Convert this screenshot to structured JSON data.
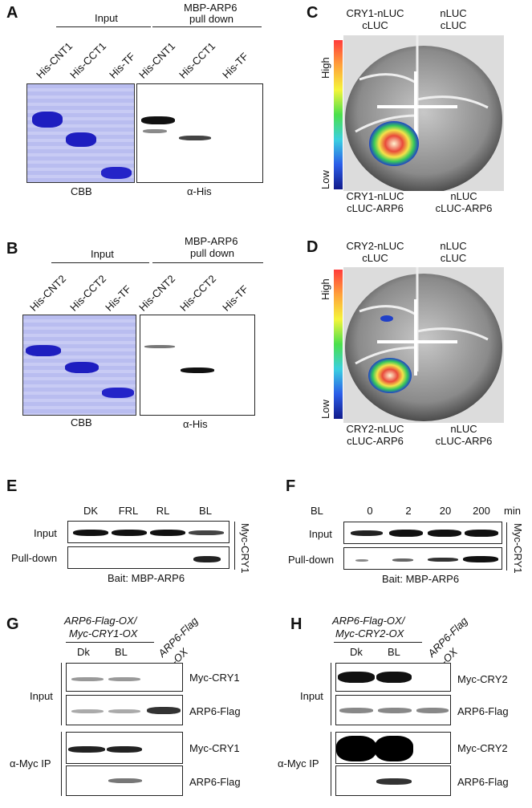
{
  "panels": {
    "A": {
      "label": "A",
      "input": "Input",
      "pulldown_l1": "MBP-ARP6",
      "pulldown_l2": "pull down",
      "lanes": [
        "His-CNT1",
        "His-CCT1",
        "His-TF"
      ],
      "lanes_pd": [
        "His-CNT1",
        "His-CCT1",
        "His-TF"
      ],
      "cbb": "CBB",
      "ahis": "α-His"
    },
    "B": {
      "label": "B",
      "input": "Input",
      "pulldown_l1": "MBP-ARP6",
      "pulldown_l2": "pull down",
      "lanes": [
        "His-CNT2",
        "His-CCT2",
        "His-TF"
      ],
      "lanes_pd": [
        "His-CNT2",
        "His-CCT2",
        "His-TF"
      ],
      "cbb": "CBB",
      "ahis": "α-His"
    },
    "C": {
      "label": "C",
      "tl1": "CRY1-nLUC",
      "tl2": "cLUC",
      "tr1": "nLUC",
      "tr2": "cLUC",
      "bl1": "CRY1-nLUC",
      "bl2": "cLUC-ARP6",
      "br1": "nLUC",
      "br2": "cLUC-ARP6",
      "high": "High",
      "low": "Low"
    },
    "D": {
      "label": "D",
      "tl1": "CRY2-nLUC",
      "tl2": "cLUC",
      "tr1": "nLUC",
      "tr2": "cLUC",
      "bl1": "CRY2-nLUC",
      "bl2": "cLUC-ARP6",
      "br1": "nLUC",
      "br2": "cLUC-ARP6",
      "high": "High",
      "low": "Low"
    },
    "E": {
      "label": "E",
      "conds": [
        "DK",
        "FRL",
        "RL",
        "BL"
      ],
      "input": "Input",
      "pulldown": "Pull-down",
      "side": "Myc-CRY1",
      "bait": "Bait: MBP-ARP6"
    },
    "F": {
      "label": "F",
      "bl": "BL",
      "times": [
        "0",
        "2",
        "20",
        "200"
      ],
      "unit": "min",
      "input": "Input",
      "pulldown": "Pull-down",
      "side": "Myc-CRY1",
      "bait": "Bait: MBP-ARP6"
    },
    "G": {
      "label": "G",
      "geno1": "ARP6-Flag-OX/",
      "geno2": "Myc-CRY1-OX",
      "dk": "Dk",
      "bl": "BL",
      "ox": "ARP6-Flag",
      "ox2": "-OX",
      "input": "Input",
      "ip": "α-Myc IP",
      "blots": [
        "Myc-CRY1",
        "ARP6-Flag",
        "Myc-CRY1",
        "ARP6-Flag"
      ]
    },
    "H": {
      "label": "H",
      "geno1": "ARP6-Flag-OX/",
      "geno2": "Myc-CRY2-OX",
      "dk": "Dk",
      "bl": "BL",
      "ox": "ARP6-Flag",
      "ox2": "-OX",
      "input": "Input",
      "ip": "α-Myc IP",
      "blots": [
        "Myc-CRY2",
        "ARP6-Flag",
        "Myc-CRY2",
        "ARP6-Flag"
      ]
    }
  }
}
